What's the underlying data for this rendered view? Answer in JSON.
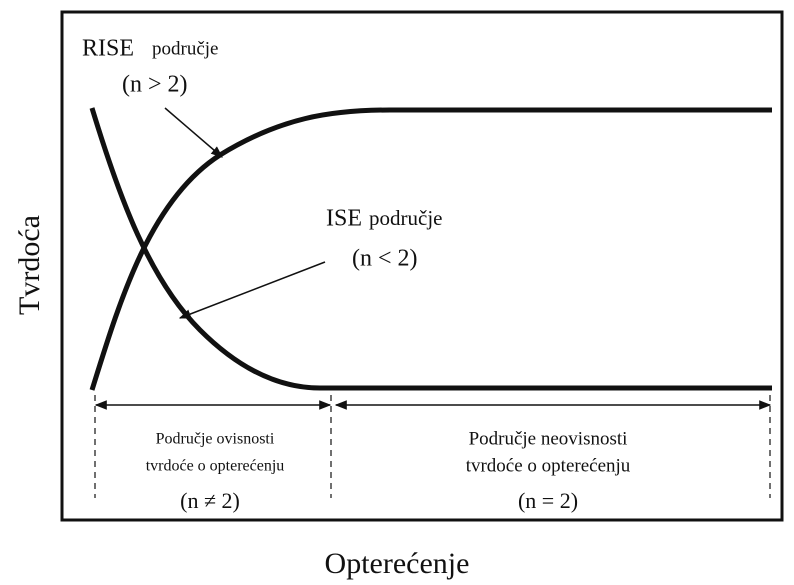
{
  "rise_label": {
    "name": "RISE",
    "suffix": "područje",
    "condition": "(n > 2)"
  },
  "ise_label": {
    "name": "ISE",
    "suffix": "područje",
    "condition": "(n < 2)"
  },
  "left_region": {
    "line1": "Područje ovisnosti",
    "line2": "tvrdoće o opterećenju",
    "condition": "(n ≠ 2)"
  },
  "right_region": {
    "line1": "Područje neovisnosti",
    "line2": "tvrdoće o opterećenju",
    "condition": "(n = 2)"
  },
  "y_axis_label": "Tvrdoća",
  "x_axis_label": "Opterećenje"
}
